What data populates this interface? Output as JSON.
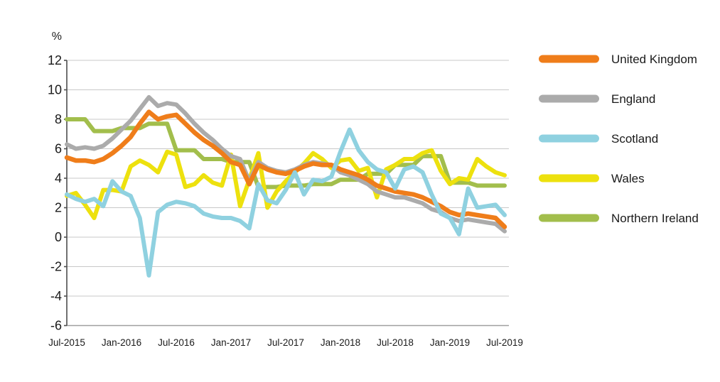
{
  "figure": {
    "unit_label": "%",
    "background": "#ffffff",
    "text_color": "#1a1a1a",
    "gridline_color": "#c8c8c8",
    "x_axis_color": "#9f9f9f",
    "y_axis_color": "#4d4d4d"
  },
  "chart_data": {
    "type": "line",
    "title": "",
    "ylabel": "%",
    "ylim": [
      -6,
      12
    ],
    "ytick_step": 2,
    "ytick_labels": [
      "12",
      "10",
      "8",
      "6",
      "4",
      "2",
      "0",
      "-2",
      "-4",
      "-6"
    ],
    "grid": "horizontal",
    "legend_position": "right",
    "x_tick_labels": [
      "Jul-2015",
      "Jan-2016",
      "Jul-2016",
      "Jan-2017",
      "Jul-2017",
      "Jan-2018",
      "Jul-2018",
      "Jan-2019",
      "Jul-2019"
    ],
    "x": [
      "Jul-2015",
      "Aug-2015",
      "Sep-2015",
      "Oct-2015",
      "Nov-2015",
      "Dec-2015",
      "Jan-2016",
      "Feb-2016",
      "Mar-2016",
      "Apr-2016",
      "May-2016",
      "Jun-2016",
      "Jul-2016",
      "Aug-2016",
      "Sep-2016",
      "Oct-2016",
      "Nov-2016",
      "Dec-2016",
      "Jan-2017",
      "Feb-2017",
      "Mar-2017",
      "Apr-2017",
      "May-2017",
      "Jun-2017",
      "Jul-2017",
      "Aug-2017",
      "Sep-2017",
      "Oct-2017",
      "Nov-2017",
      "Dec-2017",
      "Jan-2018",
      "Feb-2018",
      "Mar-2018",
      "Apr-2018",
      "May-2018",
      "Jun-2018",
      "Jul-2018",
      "Aug-2018",
      "Sep-2018",
      "Oct-2018",
      "Nov-2018",
      "Dec-2018",
      "Jan-2019",
      "Feb-2019",
      "Mar-2019",
      "Apr-2019",
      "May-2019",
      "Jun-2019",
      "Jul-2019"
    ],
    "series": [
      {
        "name": "United Kingdom",
        "color": "#EF7D1A",
        "line_width": 6.5,
        "values": [
          5.4,
          5.2,
          5.2,
          5.1,
          5.3,
          5.7,
          6.2,
          6.8,
          7.7,
          8.5,
          8.0,
          8.2,
          8.3,
          7.7,
          7.1,
          6.6,
          6.2,
          5.7,
          5.1,
          4.9,
          3.6,
          4.9,
          4.6,
          4.4,
          4.3,
          4.5,
          4.8,
          5.0,
          4.9,
          4.9,
          4.6,
          4.4,
          4.2,
          3.9,
          3.5,
          3.3,
          3.1,
          3.0,
          2.9,
          2.7,
          2.4,
          2.1,
          1.7,
          1.5,
          1.6,
          1.5,
          1.4,
          1.3,
          0.7
        ]
      },
      {
        "name": "England",
        "color": "#ABABAB",
        "line_width": 6,
        "values": [
          6.3,
          6.0,
          6.1,
          6.0,
          6.2,
          6.7,
          7.3,
          7.9,
          8.7,
          9.5,
          8.9,
          9.1,
          9.0,
          8.4,
          7.7,
          7.1,
          6.6,
          6.0,
          5.5,
          5.3,
          3.8,
          5.1,
          4.7,
          4.5,
          4.4,
          4.6,
          4.9,
          5.1,
          5.0,
          4.9,
          4.4,
          4.2,
          3.9,
          3.6,
          3.1,
          2.9,
          2.7,
          2.7,
          2.5,
          2.3,
          1.9,
          1.7,
          1.3,
          1.1,
          1.2,
          1.1,
          1.0,
          0.9,
          0.4
        ]
      },
      {
        "name": "Scotland",
        "color": "#8FD1E0",
        "line_width": 6,
        "values": [
          2.9,
          2.6,
          2.4,
          2.6,
          2.1,
          3.8,
          3.1,
          2.8,
          1.3,
          -2.6,
          1.7,
          2.2,
          2.4,
          2.3,
          2.1,
          1.6,
          1.4,
          1.3,
          1.3,
          1.1,
          0.6,
          3.6,
          2.5,
          2.3,
          3.2,
          4.4,
          2.9,
          3.9,
          3.8,
          4.1,
          5.8,
          7.3,
          5.9,
          5.1,
          4.6,
          4.4,
          3.3,
          4.6,
          4.8,
          4.4,
          2.9,
          1.6,
          1.3,
          0.2,
          3.3,
          2.0,
          2.1,
          2.2,
          1.5
        ]
      },
      {
        "name": "Wales",
        "color": "#EDE10E",
        "line_width": 6,
        "values": [
          2.8,
          3.0,
          2.2,
          1.3,
          3.2,
          3.2,
          3.1,
          4.8,
          5.2,
          4.9,
          4.4,
          5.8,
          5.6,
          3.4,
          3.6,
          4.2,
          3.7,
          3.5,
          5.6,
          2.1,
          3.9,
          5.7,
          2.0,
          3.1,
          3.8,
          4.4,
          5.0,
          5.7,
          5.3,
          4.7,
          5.2,
          5.3,
          4.5,
          4.7,
          2.7,
          4.6,
          4.9,
          5.3,
          5.3,
          5.7,
          5.9,
          4.5,
          3.6,
          4.0,
          3.9,
          5.3,
          4.8,
          4.4,
          4.2
        ]
      },
      {
        "name": "Northern Ireland",
        "color": "#A2BE4C",
        "line_width": 6,
        "note": "quarterly series, quarter value repeated for each month",
        "values": [
          8.0,
          8.0,
          8.0,
          7.2,
          7.2,
          7.2,
          7.4,
          7.4,
          7.4,
          7.7,
          7.7,
          7.7,
          5.9,
          5.9,
          5.9,
          5.3,
          5.3,
          5.3,
          5.1,
          5.1,
          5.1,
          3.4,
          3.4,
          3.4,
          3.5,
          3.5,
          3.5,
          3.6,
          3.6,
          3.6,
          3.9,
          3.9,
          3.9,
          4.3,
          4.3,
          4.3,
          4.9,
          4.9,
          4.9,
          5.5,
          5.5,
          5.5,
          3.7,
          3.7,
          3.7,
          3.5,
          3.5,
          3.5,
          3.5
        ]
      }
    ],
    "draw_order": [
      "Northern Ireland",
      "Wales",
      "England",
      "United Kingdom",
      "Scotland"
    ]
  },
  "legend": {
    "items": [
      "United Kingdom",
      "England",
      "Scotland",
      "Wales",
      "Northern Ireland"
    ]
  }
}
